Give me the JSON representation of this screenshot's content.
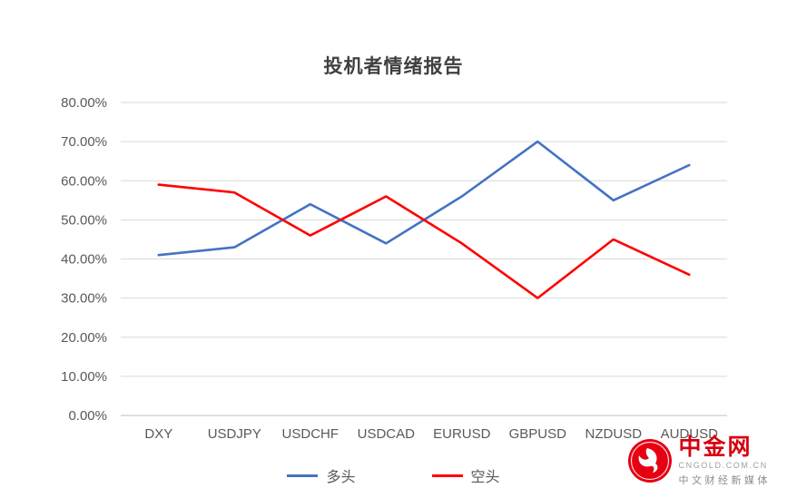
{
  "chart_data": {
    "type": "line",
    "title": "投机者情绪报告",
    "categories": [
      "DXY",
      "USDJPY",
      "USDCHF",
      "USDCAD",
      "EURUSD",
      "GBPUSD",
      "NZDUSD",
      "AUDUSD"
    ],
    "series": [
      {
        "name": "多头",
        "color": "#4472C4",
        "values": [
          41,
          43,
          54,
          44,
          56,
          70,
          55,
          64
        ]
      },
      {
        "name": "空头",
        "color": "#FF0000",
        "values": [
          59,
          57,
          46,
          56,
          44,
          30,
          45,
          36
        ]
      }
    ],
    "ylim": [
      0,
      80
    ],
    "ytick_step": 10,
    "ytick_labels": [
      "0.00%",
      "10.00%",
      "20.00%",
      "30.00%",
      "40.00%",
      "50.00%",
      "60.00%",
      "70.00%",
      "80.00%"
    ],
    "grid": true,
    "legend_position": "bottom",
    "colors": {
      "gridline": "#d9d9d9",
      "axis_line": "#bfbfbf",
      "tick_text": "#595959"
    }
  },
  "watermark": {
    "brand": "中金网",
    "domain": "CNGOLD.COM.CN",
    "tagline": "中文财经新媒体"
  }
}
